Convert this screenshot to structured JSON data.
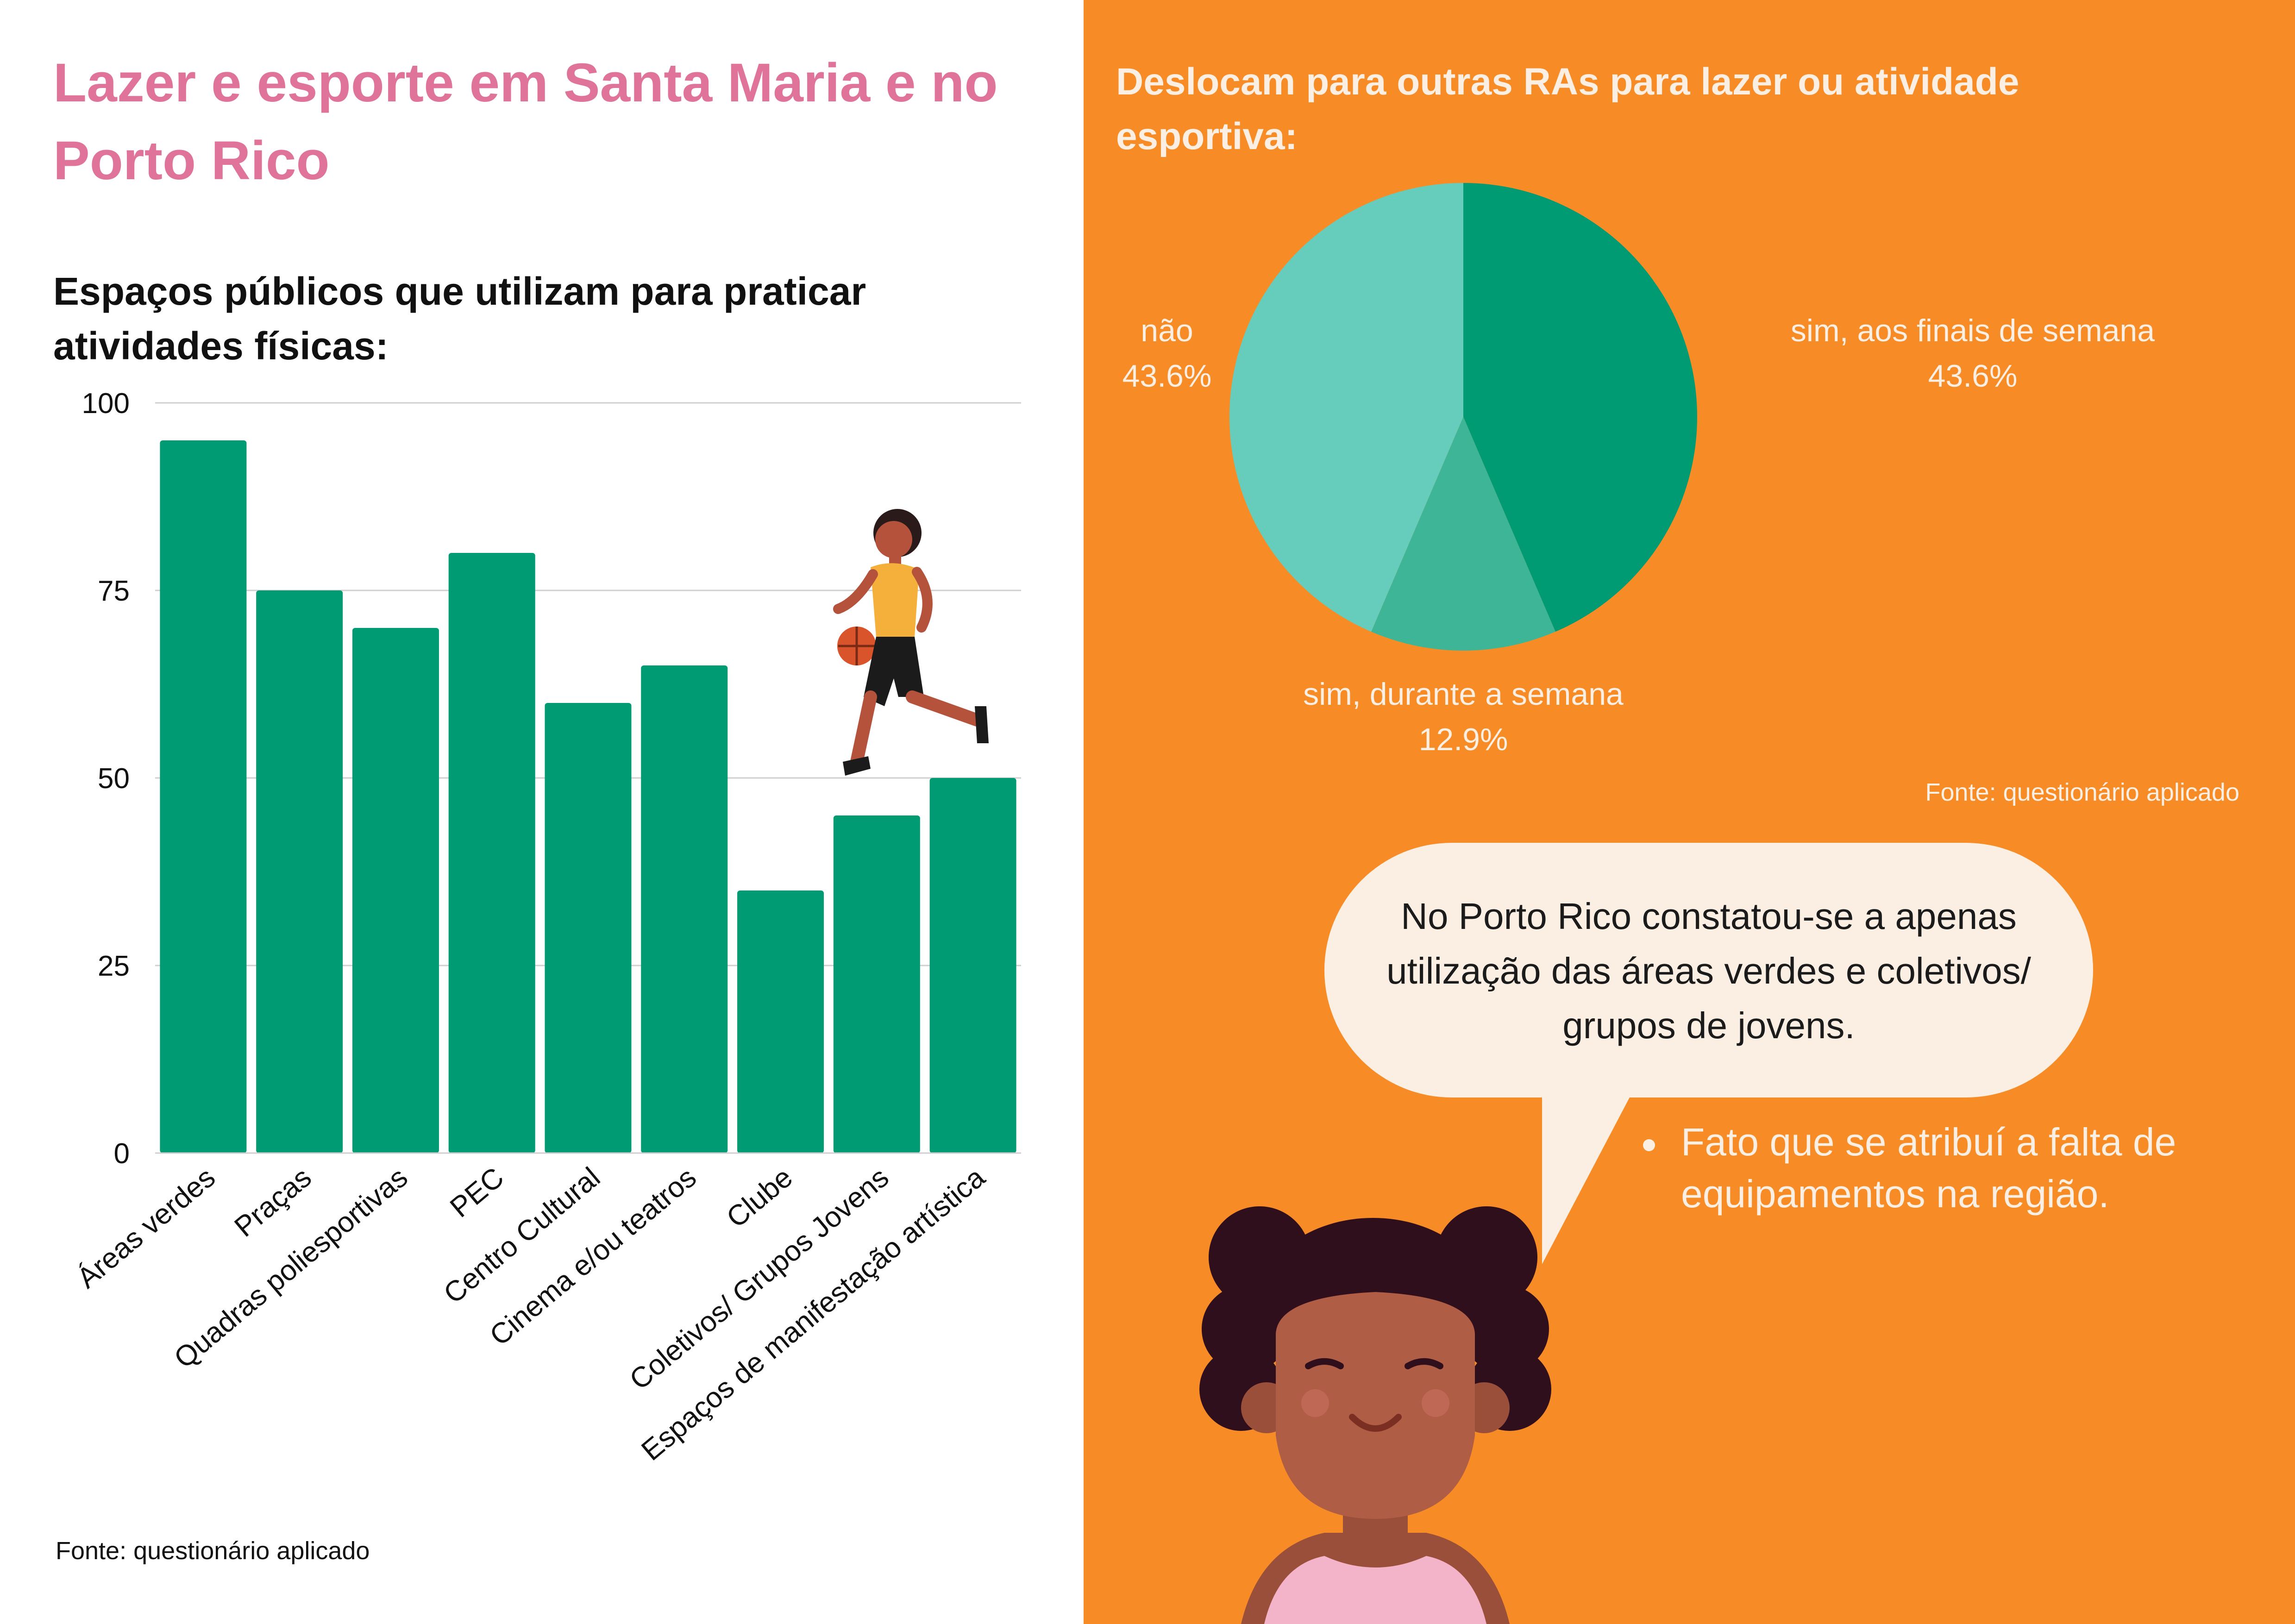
{
  "title": "Lazer e esporte em Santa Maria e no Porto Rico",
  "bar_section": {
    "title": "Espaços públicos que utilizam para praticar atividades físicas:",
    "source": "Fonte: questionário aplicado"
  },
  "pie_section": {
    "title": "Deslocam para outras RAs para lazer ou atividade esportiva:",
    "source": "Fonte: questionário aplicado",
    "labels": [
      {
        "name": "não",
        "value": "43.6%"
      },
      {
        "name": "sim, aos finais de semana",
        "value": "43.6%"
      },
      {
        "name": "sim, durante a semana",
        "value": "12.9%"
      }
    ]
  },
  "callout": {
    "text": "No Porto Rico  constatou-se a apenas utilização  das áreas verdes e coletivos/ grupos de jovens.",
    "bullet": "Fato que se atribuí a falta de equipamentos na região."
  },
  "colors": {
    "bar": "#009b72",
    "title_pink": "#e07399",
    "orange": "#f78c27",
    "pie_dark": "#009b72",
    "pie_light": "#66ccbb",
    "pie_mid": "#3db596",
    "cream": "#fbeee2"
  },
  "icons": [
    "basketball-player-illustration",
    "smiling-girl-illustration"
  ],
  "chart_data": [
    {
      "type": "bar",
      "title": "Espaços públicos que utilizam para praticar atividades físicas:",
      "categories": [
        "Áreas verdes",
        "Praças",
        "Quadras poliesportivas",
        "PEC",
        "Centro Cultural",
        "Cinema e/ou teatros",
        "Clube",
        "Coletivos/ Grupos Jovens",
        "Espaços de manifestação artística"
      ],
      "values": [
        95,
        75,
        70,
        80,
        60,
        65,
        35,
        45,
        50
      ],
      "ylim": [
        0,
        100
      ],
      "yticks": [
        0,
        25,
        50,
        75,
        100
      ],
      "grid": true
    },
    {
      "type": "pie",
      "title": "Deslocam para outras RAs para lazer ou atividade esportiva:",
      "labels": [
        "sim, aos finais de semana",
        "sim, durante a semana",
        "não"
      ],
      "values": [
        43.6,
        12.9,
        43.6
      ],
      "colors": [
        "#009b72",
        "#3db596",
        "#66ccbb"
      ]
    }
  ]
}
